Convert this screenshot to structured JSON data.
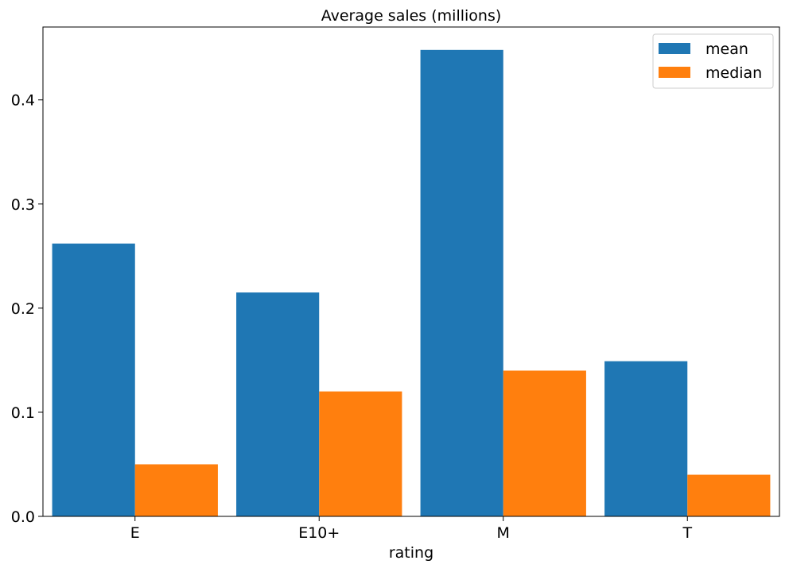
{
  "chart_data": {
    "type": "bar",
    "title": "Average sales (millions)",
    "xlabel": "rating",
    "ylabel": "",
    "categories": [
      "E",
      "E10+",
      "M",
      "T"
    ],
    "series": [
      {
        "name": "mean",
        "color": "#1f77b4",
        "values": [
          0.262,
          0.215,
          0.448,
          0.149
        ]
      },
      {
        "name": "median",
        "color": "#ff7f0e",
        "values": [
          0.05,
          0.12,
          0.14,
          0.04
        ]
      }
    ],
    "ylim": [
      0,
      0.47
    ],
    "yticks": [
      0.0,
      0.1,
      0.2,
      0.3,
      0.4
    ],
    "ytick_labels": [
      "0.0",
      "0.1",
      "0.2",
      "0.3",
      "0.4"
    ],
    "grid": false,
    "legend_position": "top-right"
  }
}
